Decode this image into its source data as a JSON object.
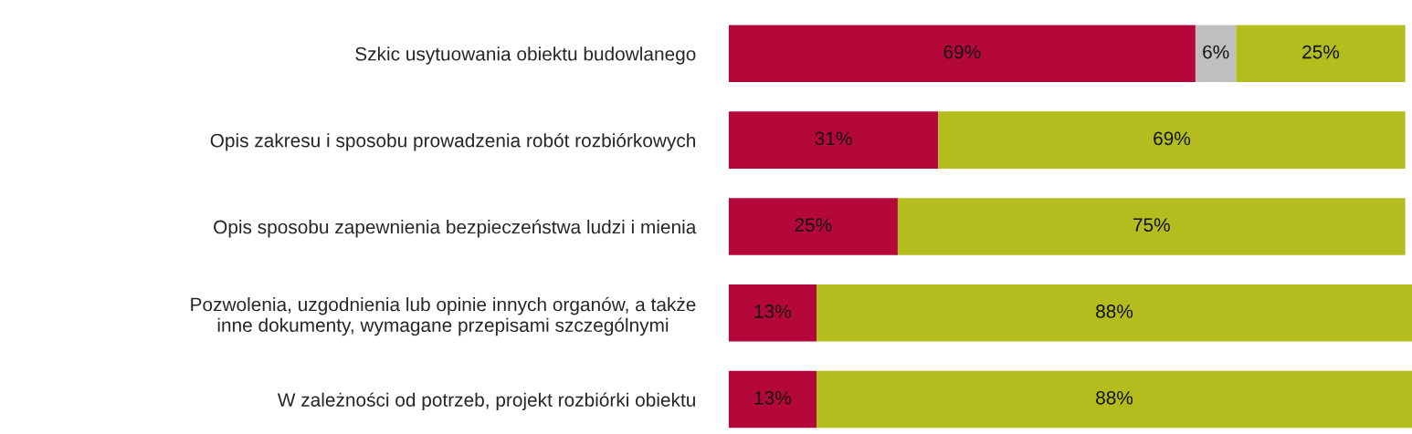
{
  "chart_data": {
    "type": "bar",
    "orientation": "horizontal",
    "stacked": true,
    "tick_labels": "y",
    "grid": false,
    "legend": false,
    "categories": [
      "Szkic usytuowania obiektu budowlanego",
      "Opis zakresu i sposobu prowadzenia robót rozbiórkowych",
      "Opis sposobu zapewnienia bezpieczeństwa ludzi i mienia",
      "Pozwolenia, uzgodnienia lub opinie innych organów, a także\ninne dokumenty, wymagane przepisami szczególnymi",
      "W zależności od potrzeb, projekt rozbiórki obiektu"
    ],
    "series": [
      {
        "color": "#b5083a",
        "values": [
          69,
          31,
          25,
          13,
          13
        ],
        "value_labels": [
          "69%",
          "31%",
          "25%",
          "13%",
          "13%"
        ]
      },
      {
        "color": "#bfbfbf",
        "values": [
          6,
          null,
          null,
          null,
          null
        ],
        "value_labels": [
          "6%",
          null,
          null,
          null,
          null
        ]
      },
      {
        "color": "#b3bd1e",
        "values": [
          25,
          69,
          75,
          88,
          88
        ],
        "value_labels": [
          "25%",
          "69%",
          "75%",
          "88%",
          "88%"
        ]
      }
    ]
  }
}
